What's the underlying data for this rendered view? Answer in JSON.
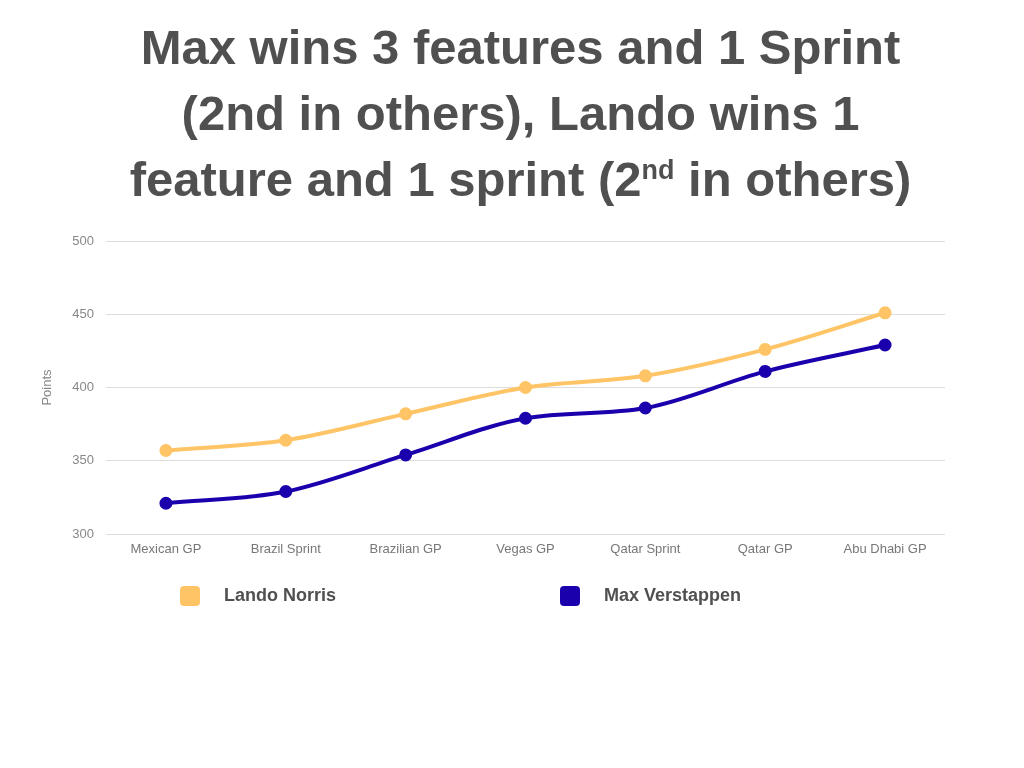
{
  "chart_data": {
    "type": "line",
    "title": "Max wins 3 features and 1 Sprint (2nd in others), Lando wins 1 feature and 1 sprint (2$^{nd}$ in others)",
    "ylabel": "Points",
    "categories": [
      "Mexican GP",
      "Brazil Sprint",
      "Brazilian GP",
      "Vegas GP",
      "Qatar Sprint",
      "Qatar GP",
      "Abu Dhabi GP"
    ],
    "series": [
      {
        "name": "Lando Norris",
        "color": "#ffc466",
        "values": [
          357,
          364,
          382,
          400,
          408,
          426,
          451
        ]
      },
      {
        "name": "Max Verstappen",
        "color": "#1a00ad",
        "values": [
          321,
          329,
          354,
          379,
          386,
          411,
          429
        ]
      }
    ],
    "ylim": [
      300,
      500
    ],
    "yticks": [
      300,
      350,
      400,
      450,
      500
    ],
    "grid": "y",
    "legend": "bottom",
    "marker": "circle",
    "line_style": "solid"
  }
}
